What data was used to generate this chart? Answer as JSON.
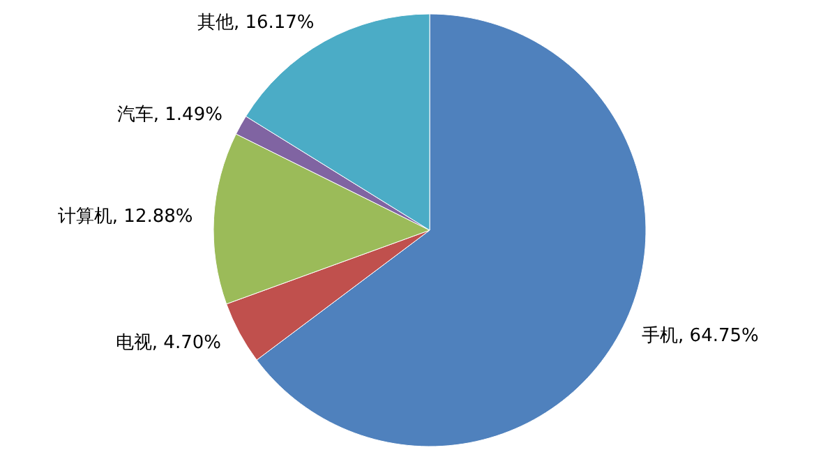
{
  "chart_data": {
    "type": "pie",
    "categories": [
      "手机",
      "电视",
      "计算机",
      "汽车",
      "其他"
    ],
    "values": [
      64.75,
      4.7,
      12.88,
      1.49,
      16.17
    ],
    "colors": [
      "#4f81bd",
      "#c0504d",
      "#9bbb59",
      "#8064a2",
      "#4bacc6"
    ],
    "value_labels": [
      "64.75%",
      "4.70%",
      "12.88%",
      "1.49%",
      "16.17%"
    ],
    "legend": false
  }
}
